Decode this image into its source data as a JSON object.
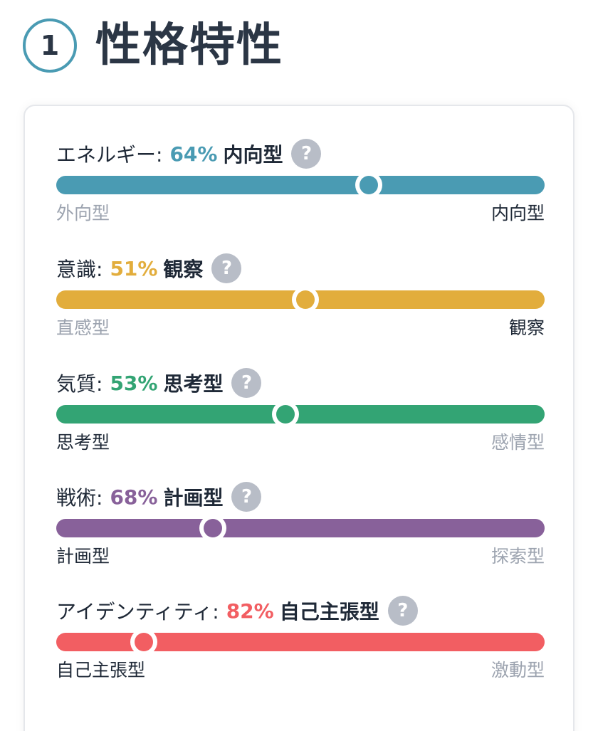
{
  "header": {
    "step_number": "1",
    "title": "性格特性"
  },
  "traits": [
    {
      "name": "エネルギー:",
      "percent": "64%",
      "type": "内向型",
      "color": "#4a9bb3",
      "value": 0.64,
      "knob_side": "right",
      "left_label": "外向型",
      "right_label": "内向型",
      "active_side": "right",
      "help_icon": "question-icon"
    },
    {
      "name": "意識:",
      "percent": "51%",
      "type": "観察",
      "color": "#e2ad3c",
      "value": 0.51,
      "knob_side": "right",
      "left_label": "直感型",
      "right_label": "観察",
      "active_side": "right",
      "help_icon": "question-icon"
    },
    {
      "name": "気質:",
      "percent": "53%",
      "type": "思考型",
      "color": "#33a474",
      "value": 0.53,
      "knob_side": "left",
      "left_label": "思考型",
      "right_label": "感情型",
      "active_side": "left",
      "help_icon": "question-icon"
    },
    {
      "name": "戦術:",
      "percent": "68%",
      "type": "計画型",
      "color": "#88619a",
      "value": 0.68,
      "knob_side": "left",
      "left_label": "計画型",
      "right_label": "探索型",
      "active_side": "left",
      "help_icon": "question-icon"
    },
    {
      "name": "アイデンティティ:",
      "percent": "82%",
      "type": "自己主張型",
      "color": "#f25e62",
      "value": 0.82,
      "knob_side": "left",
      "left_label": "自己主張型",
      "right_label": "激動型",
      "active_side": "left",
      "help_icon": "question-icon"
    }
  ]
}
